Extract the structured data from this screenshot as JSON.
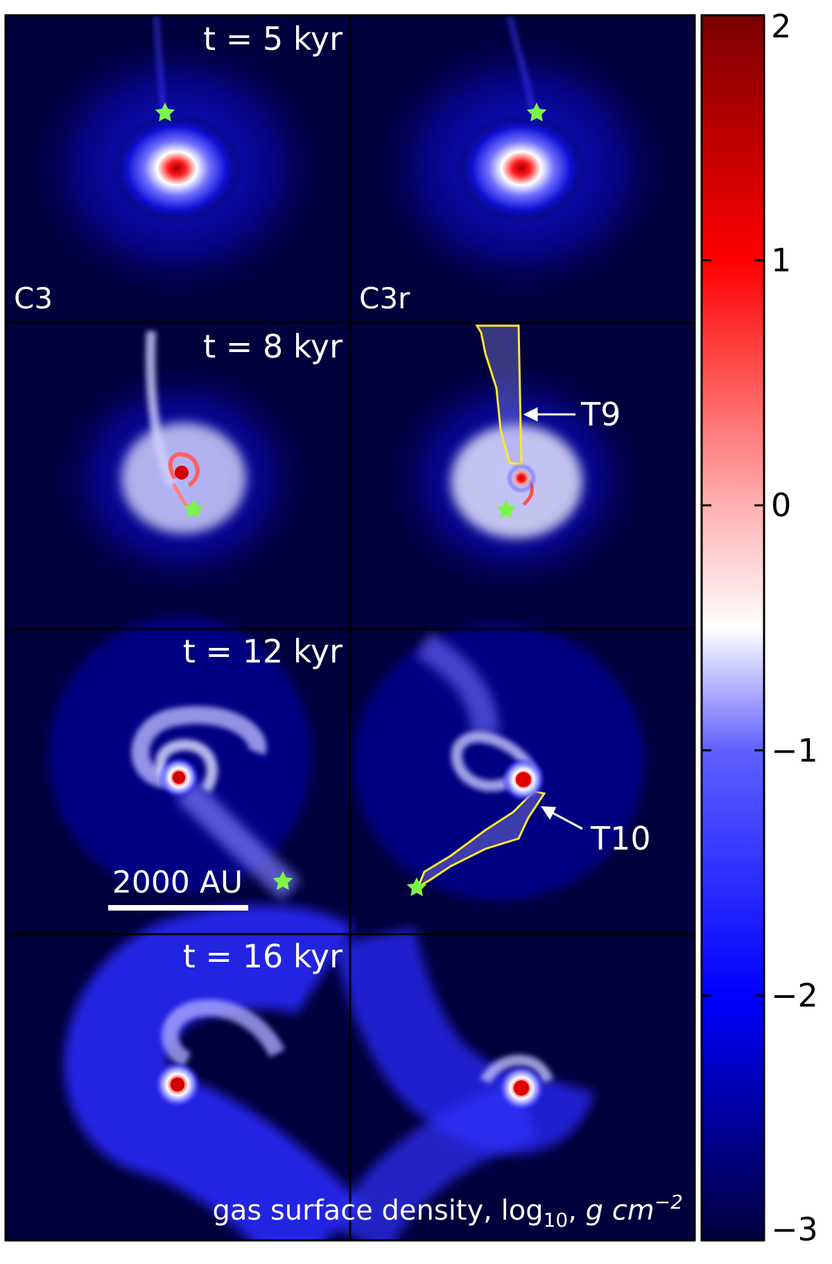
{
  "panel_grid": {
    "rows": [
      {
        "time_label": "t = 5 kyr"
      },
      {
        "time_label": "t = 8 kyr"
      },
      {
        "time_label": "t = 12 kyr"
      },
      {
        "time_label": "t = 16 kyr"
      }
    ],
    "column_labels": [
      "C3",
      "C3r"
    ]
  },
  "annotations": {
    "tag_T9": "T9",
    "tag_T10": "T10",
    "scale_bar": "2000 AU",
    "footer_prefix": "gas surface density, log",
    "footer_sub": "10",
    "footer_sep": ",  ",
    "footer_unit": "g cm",
    "footer_exp": "−2"
  },
  "colorbar": {
    "min": -3,
    "max": 2,
    "tick_values": [
      2,
      1,
      0,
      -1,
      -2,
      -3
    ],
    "tick_labels": [
      "2",
      "1",
      "0",
      "−1",
      "−2",
      "−3"
    ],
    "colors": [
      "#ffffff",
      "#00003c",
      "#0000ff",
      "#ff0000",
      "#7a0000",
      "#7cf44a",
      "#e6e600"
    ]
  }
}
